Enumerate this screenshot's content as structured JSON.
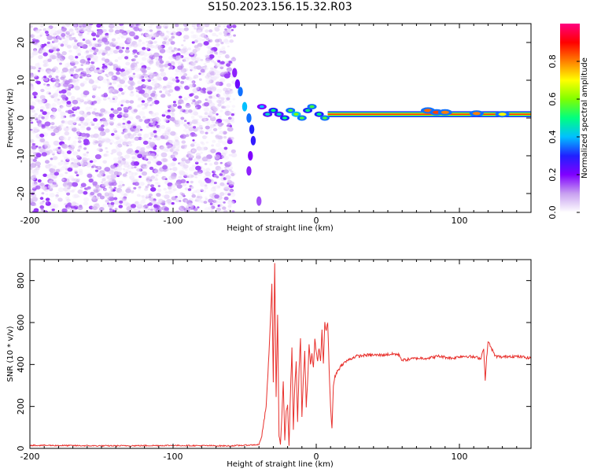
{
  "title": "S150.2023.156.15.32.R03",
  "chart_data": [
    {
      "type": "heatmap",
      "xlabel": "Height of straight line (km)",
      "ylabel": "Frequency (Hz)",
      "xlim": [
        -200,
        150
      ],
      "ylim": [
        -25,
        25
      ],
      "xticks": [
        -200,
        -100,
        0,
        100
      ],
      "yticks": [
        -20,
        -10,
        0,
        10,
        20
      ],
      "colorbar": {
        "label": "Normalized spectral amplitude",
        "range": [
          0,
          1
        ],
        "ticks": [
          0.0,
          0.2,
          0.4,
          0.6,
          0.8
        ],
        "colormap": [
          "#ffffff",
          "#c8a0f0",
          "#8000ff",
          "#2020ff",
          "#00c0ff",
          "#00ff80",
          "#80ff00",
          "#ffff00",
          "#ff8000",
          "#ff0000",
          "#ff0080"
        ]
      },
      "features": {
        "noise_region_x": [
          -200,
          -57
        ],
        "noise_amplitude_range": [
          0.0,
          0.15
        ],
        "transition_x": [
          -57,
          -35
        ],
        "carrier_x": [
          -40,
          150
        ],
        "carrier_frequency_hz": 1,
        "carrier_peak_amplitude": 1.0
      }
    },
    {
      "type": "line",
      "xlabel": "Height of straight line (km)",
      "ylabel": "SNR (10 * v/v)",
      "xlim": [
        -200,
        150
      ],
      "ylim": [
        0,
        900
      ],
      "xticks": [
        -200,
        -100,
        0,
        100
      ],
      "yticks": [
        0,
        200,
        400,
        600,
        800
      ],
      "series": [
        {
          "color": "#e8302c",
          "x": [
            -200,
            -150,
            -100,
            -60,
            -40,
            -38,
            -35,
            -33,
            -31,
            -30,
            -29,
            -28,
            -27,
            -26,
            -25,
            -24,
            -23,
            -22,
            -21,
            -20,
            -19,
            -18,
            -17,
            -16,
            -15,
            -14,
            -13,
            -12,
            -11,
            -10,
            -9,
            -8,
            -7,
            -6,
            -5,
            -4,
            -3,
            -2,
            -1,
            0,
            1,
            2,
            3,
            4,
            5,
            6,
            7,
            8,
            9,
            10,
            11,
            12,
            13,
            14,
            15,
            16,
            17,
            18,
            20,
            22,
            25,
            28,
            30,
            35,
            40,
            45,
            50,
            55,
            58,
            60,
            65,
            70,
            75,
            80,
            85,
            90,
            95,
            100,
            105,
            110,
            115,
            117,
            118,
            119,
            120,
            125,
            130,
            135,
            140,
            145,
            150
          ],
          "y": [
            15,
            12,
            14,
            12,
            18,
            60,
            200,
            450,
            780,
            320,
            890,
            250,
            640,
            60,
            20,
            150,
            320,
            40,
            180,
            210,
            10,
            260,
            480,
            90,
            300,
            410,
            120,
            380,
            520,
            150,
            330,
            460,
            200,
            320,
            500,
            400,
            450,
            380,
            520,
            460,
            420,
            480,
            410,
            560,
            400,
            600,
            560,
            600,
            380,
            200,
            90,
            300,
            340,
            360,
            370,
            380,
            390,
            400,
            410,
            420,
            430,
            440,
            440,
            445,
            445,
            445,
            448,
            450,
            445,
            420,
            425,
            430,
            430,
            432,
            440,
            435,
            430,
            438,
            440,
            435,
            430,
            480,
            320,
            430,
            510,
            440,
            435,
            440,
            438,
            435,
            430
          ]
        }
      ]
    }
  ]
}
